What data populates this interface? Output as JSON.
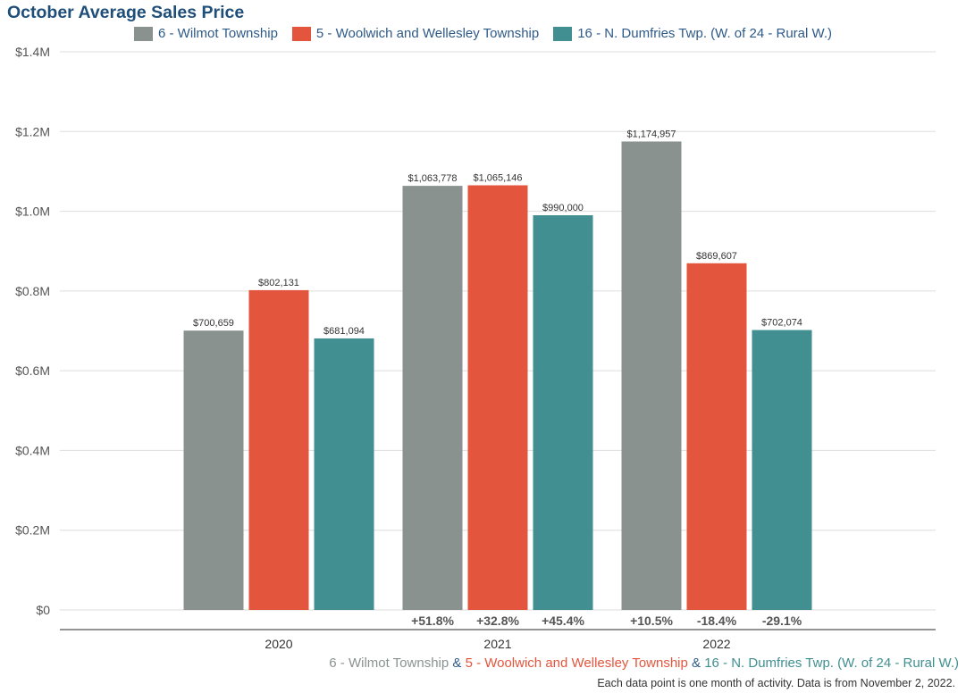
{
  "colors": {
    "title": "#1f4e79",
    "wilmot": "#8a9290",
    "woolwich": "#e4553d",
    "dumfries": "#418f91",
    "grid": "#dddddd",
    "axis": "#555555"
  },
  "footer": {
    "series_1": "6 - Wilmot Township",
    "sep_1": " & ",
    "series_2": "5 - Woolwich and Wellesley Township",
    "sep_2": " & ",
    "series_3": "16 - N. Dumfries Twp. (W. of 24 - Rural W.)",
    "note": "Each data point is one month of activity. Data is from November 2, 2022."
  },
  "chart_data": {
    "type": "bar",
    "title": "October Average Sales Price",
    "legend_position": "top",
    "grid": true,
    "categories": [
      "2020",
      "2021",
      "2022"
    ],
    "ylim": [
      0,
      1400000
    ],
    "yticks": [
      "$0",
      "$0.2M",
      "$0.4M",
      "$0.6M",
      "$0.8M",
      "$1.0M",
      "$1.2M",
      "$1.4M"
    ],
    "series": [
      {
        "name": "6 - Wilmot Township",
        "values": [
          700659,
          1063778,
          1174957
        ],
        "labels": [
          "$700,659",
          "$1,063,778",
          "$1,174,957"
        ],
        "changes": [
          "",
          "+51.8%",
          "+10.5%"
        ]
      },
      {
        "name": "5 - Woolwich and Wellesley Township",
        "values": [
          802131,
          1065146,
          869607
        ],
        "labels": [
          "$802,131",
          "$1,065,146",
          "$869,607"
        ],
        "changes": [
          "",
          "+32.8%",
          "-18.4%"
        ]
      },
      {
        "name": "16 - N. Dumfries Twp. (W. of 24 - Rural W.)",
        "values": [
          681094,
          990000,
          702074
        ],
        "labels": [
          "$681,094",
          "$990,000",
          "$702,074"
        ],
        "changes": [
          "",
          "+45.4%",
          "-29.1%"
        ]
      }
    ]
  }
}
